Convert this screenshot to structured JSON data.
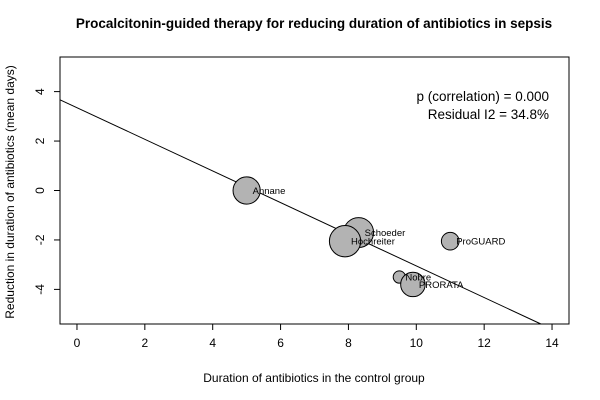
{
  "chart_data": {
    "type": "scatter",
    "title": "Procalcitonin-guided therapy for reducing duration of antibiotics in sepsis",
    "xlabel": "Duration of antibiotics in the control group",
    "ylabel": "Reduction in duration of antibiotics (mean days)",
    "xlim": [
      -0.5,
      14.5
    ],
    "ylim": [
      -5.4,
      5.4
    ],
    "xticks": [
      "0",
      "2",
      "4",
      "6",
      "8",
      "10",
      "12",
      "14"
    ],
    "yticks": [
      "-4",
      "-2",
      "0",
      "2",
      "4"
    ],
    "grid": false,
    "points": [
      {
        "label": "Annane",
        "x": 5.0,
        "y": 0.0,
        "size": 3.0
      },
      {
        "label": "Schoeder",
        "x": 8.3,
        "y": -1.7,
        "size": 3.4
      },
      {
        "label": "Hochreiter",
        "x": 7.9,
        "y": -2.05,
        "size": 3.6
      },
      {
        "label": "ProGUARD",
        "x": 11.0,
        "y": -2.05,
        "size": 1.6
      },
      {
        "label": "Nobre",
        "x": 9.5,
        "y": -3.5,
        "size": 0.8
      },
      {
        "label": "PRORATA",
        "x": 9.9,
        "y": -3.8,
        "size": 2.6
      }
    ],
    "regression_line": {
      "intercept": 3.35,
      "slope": -0.64
    },
    "annotations": [
      "p (correlation) = 0.000",
      "Residual I2 = 34.8%"
    ],
    "colors": {
      "marker_fill": "#b3b3b3",
      "marker_stroke": "#000000",
      "line": "#000000"
    }
  }
}
